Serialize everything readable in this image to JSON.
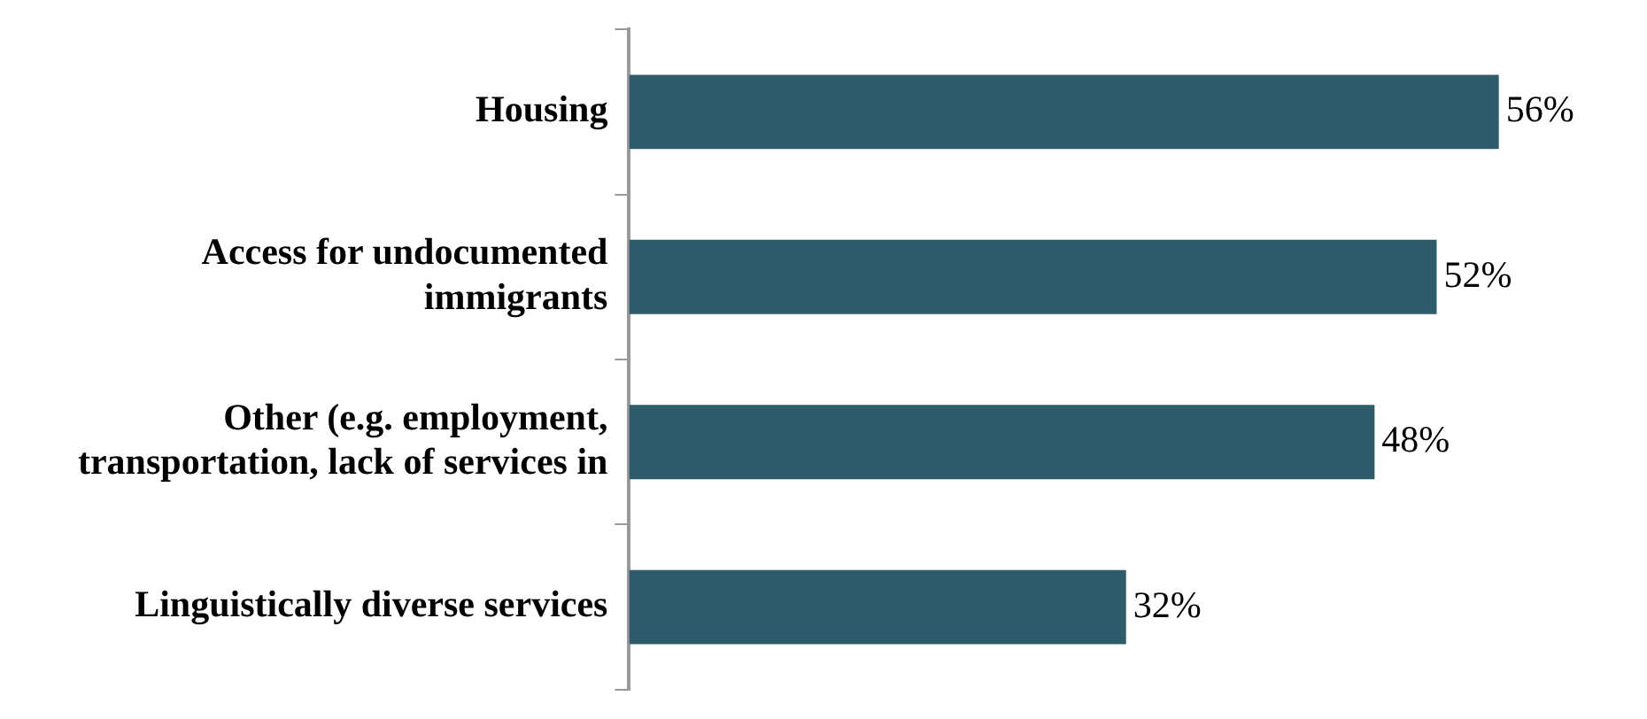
{
  "chart_data": {
    "type": "bar",
    "orientation": "horizontal",
    "categories": [
      "Housing",
      "Access for undocumented immigrants",
      "Other (e.g. employment, transportation, lack of services in",
      "Linguistically diverse services"
    ],
    "values": [
      56,
      52,
      48,
      32
    ],
    "value_labels": [
      "56%",
      "52%",
      "48%",
      "32%"
    ],
    "color": "#2f5c6b",
    "legend": false
  }
}
